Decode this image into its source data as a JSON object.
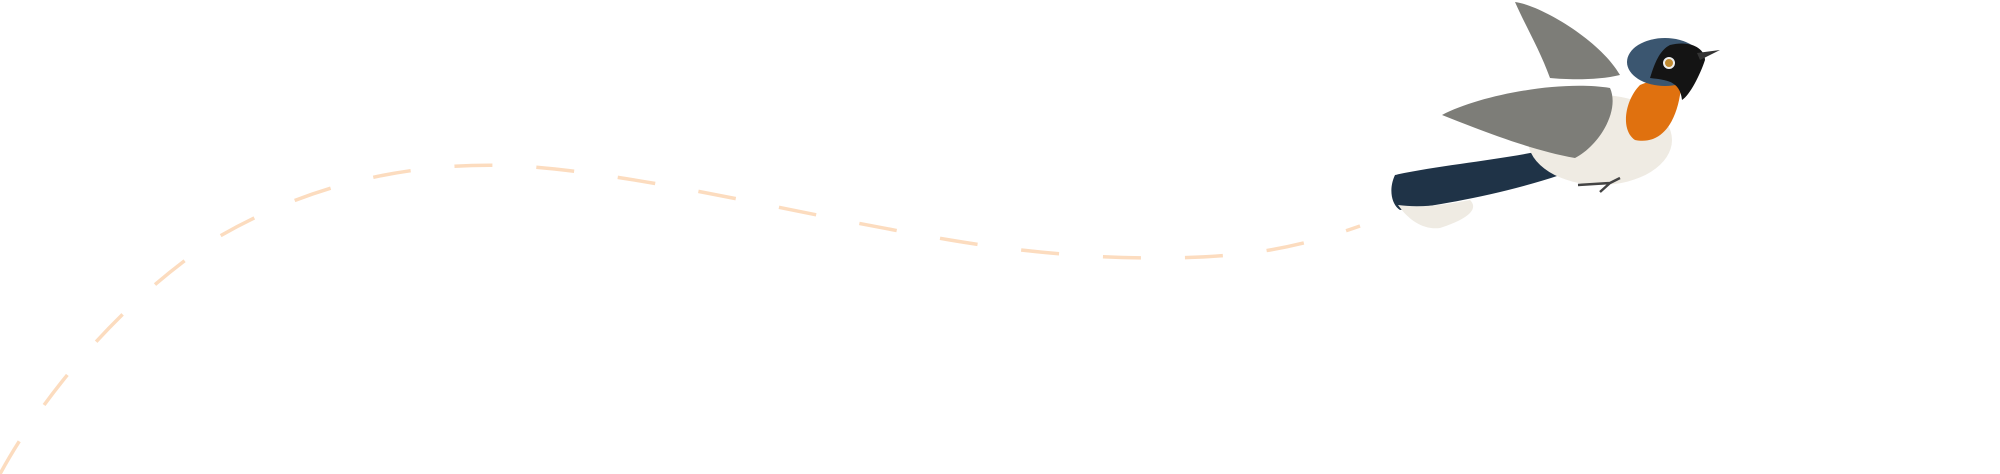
{
  "illustration": {
    "subject": "bird-in-flight",
    "path_style": "dashed",
    "colors": {
      "background": "#ffffff",
      "flight_path": "#fcdcbf",
      "bird_back": "#1f3347",
      "bird_throat": "#e0710f",
      "bird_belly": "#efebe3",
      "bird_wing": "#7d7d78"
    }
  }
}
